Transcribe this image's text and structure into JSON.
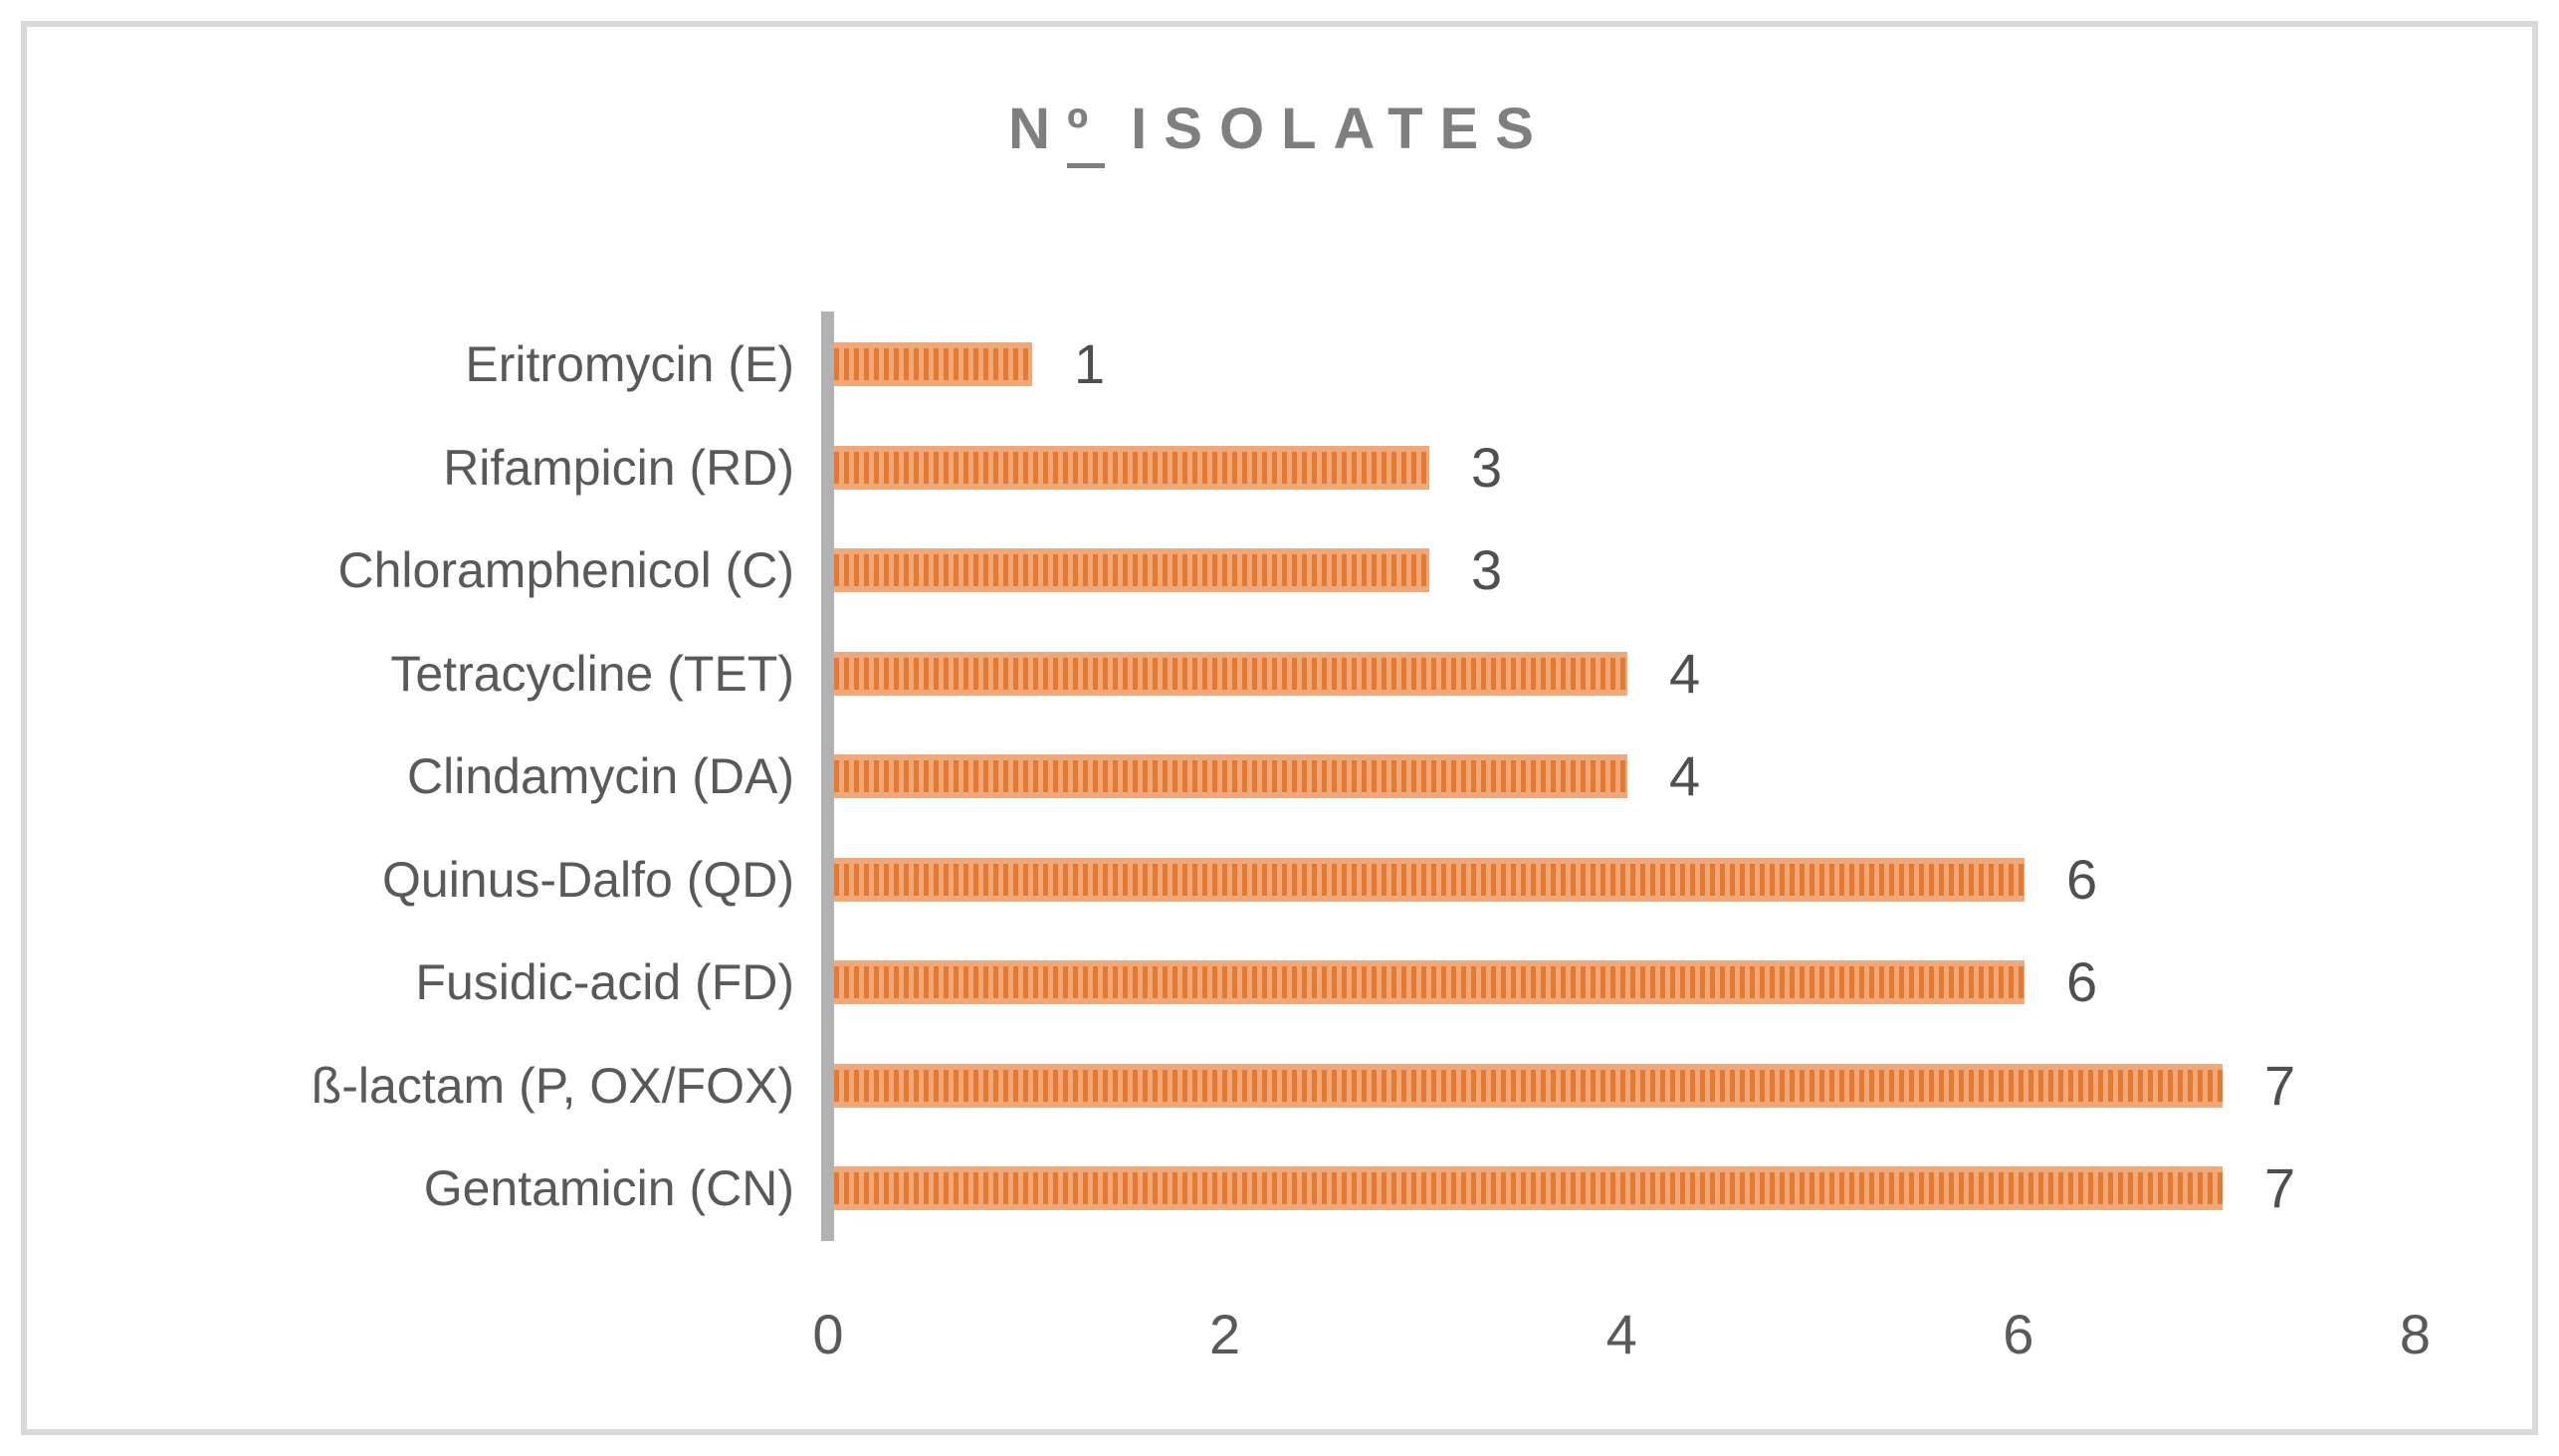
{
  "title": {
    "full": "Nº ISOLATES",
    "prefix": "N",
    "ordinal": "º",
    "rest": "ISOLATES"
  },
  "chart_data": {
    "type": "bar",
    "orientation": "horizontal",
    "title": "Nº ISOLATES",
    "categories": [
      "Eritromycin (E)",
      "Rifampicin (RD)",
      "Chloramphenicol (C)",
      "Tetracycline (TET)",
      "Clindamycin (DA)",
      "Quinus-Dalfo (QD)",
      "Fusidic-acid (FD)",
      "ß-lactam (P, OX/FOX)",
      "Gentamicin (CN)"
    ],
    "values": [
      1,
      3,
      3,
      4,
      4,
      6,
      6,
      7,
      7
    ],
    "data_labels": [
      "1",
      "3",
      "3",
      "4",
      "4",
      "6",
      "6",
      "7",
      "7"
    ],
    "xlabel": "",
    "ylabel": "",
    "xlim": [
      0,
      8
    ],
    "x_ticks": [
      "0",
      "2",
      "4",
      "6",
      "8"
    ],
    "grid": false,
    "legend": false,
    "layout_hints": {
      "bars_start_at_axis": true,
      "value_labels_outside_end": true,
      "category_labels_left": true
    },
    "colors": {
      "bar_stripe_dark": "#e5792f",
      "bar_stripe_light": "#f1a878",
      "axis_line": "#b2b2b2",
      "category_text": "#595959",
      "value_text": "#4f4f4f",
      "tick_text": "#595959",
      "title_text": "#7f7f7f",
      "frame_border": "#d9d9d9",
      "background": "#ffffff"
    }
  }
}
